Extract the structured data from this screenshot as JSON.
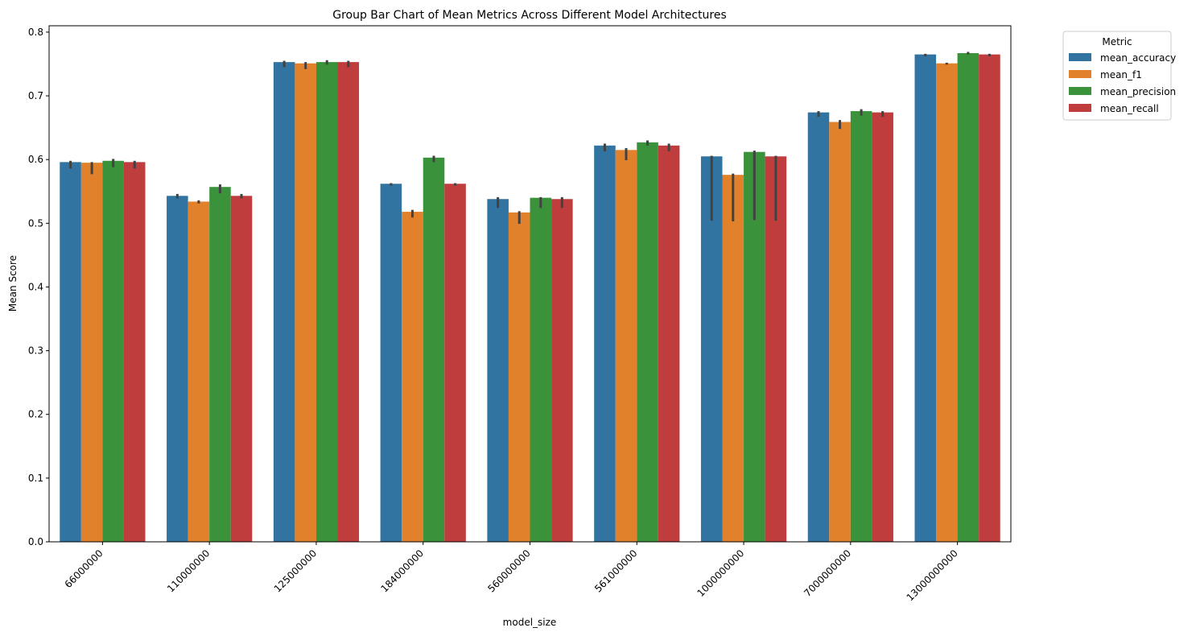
{
  "chart_data": {
    "type": "bar",
    "title": "Group Bar Chart of Mean Metrics Across Different Model Architectures",
    "xlabel": "model_size",
    "ylabel": "Mean Score",
    "categories": [
      "66000000",
      "110000000",
      "125000000",
      "184000000",
      "560000000",
      "561000000",
      "1000000000",
      "7000000000",
      "13000000000"
    ],
    "ylim": [
      0,
      0.81
    ],
    "yticks": [
      "0.0",
      "0.1",
      "0.2",
      "0.3",
      "0.4",
      "0.5",
      "0.6",
      "0.7",
      "0.8"
    ],
    "grid": false,
    "x_tick_rotation_deg": 45,
    "legend": {
      "title": "Metric",
      "placement": "outside upper right"
    },
    "series": [
      {
        "name": "mean_accuracy",
        "color": "#3274a1",
        "values": [
          0.596,
          0.543,
          0.753,
          0.562,
          0.538,
          0.622,
          0.605,
          0.674,
          0.765
        ],
        "err_low": [
          0.586,
          0.539,
          0.745,
          0.559,
          0.524,
          0.613,
          0.504,
          0.667,
          0.762
        ],
        "err_high": [
          0.598,
          0.546,
          0.755,
          0.563,
          0.541,
          0.625,
          0.606,
          0.676,
          0.766
        ]
      },
      {
        "name": "mean_f1",
        "color": "#e1812c",
        "values": [
          0.595,
          0.534,
          0.751,
          0.518,
          0.517,
          0.615,
          0.576,
          0.659,
          0.751
        ],
        "err_low": [
          0.577,
          0.531,
          0.742,
          0.509,
          0.499,
          0.599,
          0.503,
          0.648,
          0.749
        ],
        "err_high": [
          0.596,
          0.536,
          0.753,
          0.521,
          0.519,
          0.618,
          0.578,
          0.662,
          0.752
        ]
      },
      {
        "name": "mean_precision",
        "color": "#3a923a",
        "values": [
          0.598,
          0.557,
          0.753,
          0.603,
          0.54,
          0.627,
          0.612,
          0.676,
          0.767
        ],
        "err_low": [
          0.588,
          0.547,
          0.749,
          0.596,
          0.524,
          0.622,
          0.505,
          0.669,
          0.765
        ],
        "err_high": [
          0.601,
          0.561,
          0.756,
          0.606,
          0.541,
          0.63,
          0.614,
          0.679,
          0.769
        ]
      },
      {
        "name": "mean_recall",
        "color": "#c03d3e",
        "values": [
          0.596,
          0.543,
          0.753,
          0.562,
          0.538,
          0.622,
          0.605,
          0.674,
          0.765
        ],
        "err_low": [
          0.586,
          0.539,
          0.745,
          0.559,
          0.524,
          0.613,
          0.504,
          0.667,
          0.762
        ],
        "err_high": [
          0.598,
          0.546,
          0.755,
          0.563,
          0.541,
          0.625,
          0.606,
          0.676,
          0.766
        ]
      }
    ]
  }
}
